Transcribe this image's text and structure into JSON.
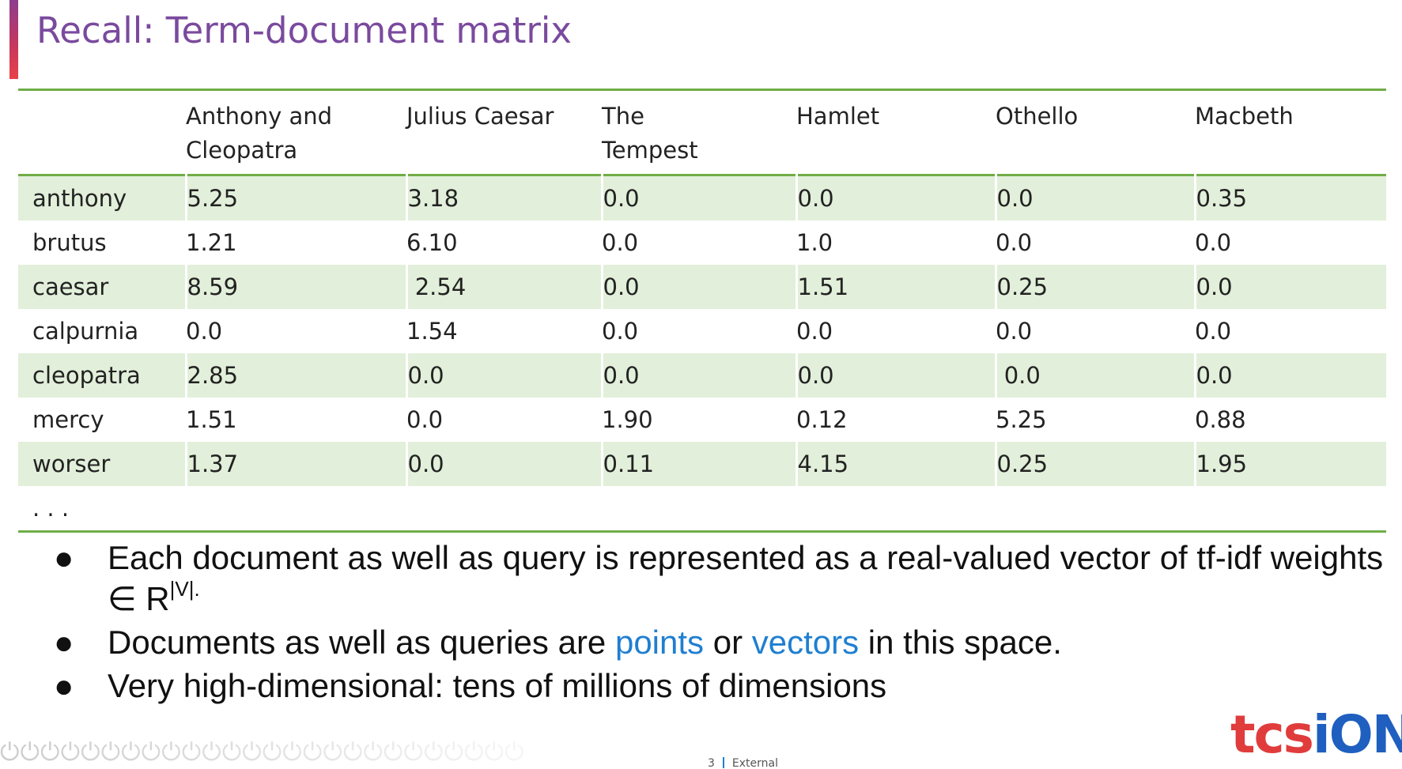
{
  "slide": {
    "title": "Recall: Term-document matrix"
  },
  "table": {
    "columns": [
      "Anthony and Cleopatra",
      "Julius Caesar",
      "The Tempest",
      "Hamlet",
      "Othello",
      "Macbeth"
    ],
    "rows": [
      {
        "term": "anthony",
        "values": [
          "5.25",
          "3.18",
          "0.0",
          "0.0",
          "0.0",
          "0.35"
        ]
      },
      {
        "term": "brutus",
        "values": [
          "1.21",
          "6.10",
          "0.0",
          "1.0",
          "0.0",
          "0.0"
        ]
      },
      {
        "term": "caesar",
        "values": [
          "8.59",
          " 2.54",
          "0.0",
          "1.51",
          "0.25",
          "0.0"
        ]
      },
      {
        "term": "calpurnia",
        "values": [
          "0.0",
          "1.54",
          "0.0",
          "0.0",
          "0.0",
          "0.0"
        ]
      },
      {
        "term": "cleopatra",
        "values": [
          "2.85",
          "0.0",
          "0.0",
          "0.0",
          " 0.0",
          "0.0"
        ]
      },
      {
        "term": "mercy",
        "values": [
          "1.51",
          "0.0",
          "1.90",
          "0.12",
          "5.25",
          "0.88"
        ]
      },
      {
        "term": "worser",
        "values": [
          "1.37",
          "0.0",
          "0.11",
          "4.15",
          "0.25",
          "1.95"
        ]
      }
    ],
    "ellipsis": ". . ."
  },
  "bullets": {
    "b1_text": "Each document as well as query is represented as a real-valued vector of tf-idf weights ∈ R",
    "b1_sup": "|V|.",
    "b2_pre": "Documents as well as queries are ",
    "b2_points": "points",
    "b2_or": " or ",
    "b2_vectors": "vectors",
    "b2_post": " in this space.",
    "b3_text": "Very high-dimensional: tens of millions of dimensions",
    "bullet_char": "●"
  },
  "footer": {
    "page_number": "3",
    "classification": "External"
  },
  "logo": {
    "part1": "tcs",
    "part2": "iON"
  },
  "colors": {
    "title": "#7a4a9e",
    "table_rule": "#70ad47",
    "row_shade": "#e2efda",
    "highlight_blue": "#1f7fd1"
  },
  "icons": {
    "footer_decoration": "power-glyph-row"
  }
}
